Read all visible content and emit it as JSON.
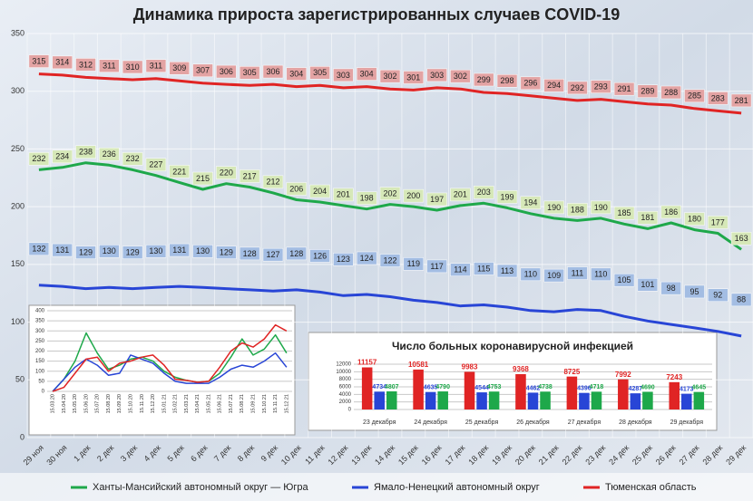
{
  "chart_data": [
    {
      "type": "line",
      "title": "Динамика прироста зарегистрированных случаев COVID-19",
      "categories": [
        "29 ноя",
        "30 ноя",
        "1 дек",
        "2 дек",
        "3 дек",
        "4 дек",
        "5 дек",
        "6 дек",
        "7 дек",
        "8 дек",
        "9 дек",
        "10 дек",
        "11 дек",
        "12 дек",
        "13 дек",
        "14 дек",
        "15 дек",
        "16 дек",
        "17 дек",
        "18 дек",
        "19 дек",
        "20 дек",
        "21 дек",
        "22 дек",
        "23 дек",
        "24 дек",
        "25 дек",
        "26 дек",
        "27 дек",
        "28 дек",
        "29 дек"
      ],
      "series": [
        {
          "name": "Ханты-Мансийский автономный округ — Югра",
          "color": "#1ea84a",
          "label_color": "#d6e8b8",
          "values": [
            232,
            234,
            238,
            236,
            232,
            227,
            221,
            215,
            220,
            217,
            212,
            206,
            204,
            201,
            198,
            202,
            200,
            197,
            201,
            203,
            199,
            194,
            190,
            188,
            190,
            185,
            181,
            186,
            180,
            177,
            163
          ]
        },
        {
          "name": "Ямало-Ненецкий автономный округ",
          "color": "#2845d6",
          "label_color": "#a3bde3",
          "values": [
            132,
            131,
            129,
            130,
            129,
            130,
            131,
            130,
            129,
            128,
            127,
            128,
            126,
            123,
            124,
            122,
            119,
            117,
            114,
            115,
            113,
            110,
            109,
            111,
            110,
            105,
            101,
            98,
            95,
            92,
            88
          ]
        },
        {
          "name": "Тюменская область",
          "color": "#e02424",
          "label_color": "#e3a3a3",
          "values": [
            315,
            314,
            312,
            311,
            310,
            311,
            309,
            307,
            306,
            305,
            306,
            304,
            305,
            303,
            304,
            302,
            301,
            303,
            302,
            299,
            298,
            296,
            294,
            292,
            293,
            291,
            289,
            288,
            285,
            283,
            281
          ]
        }
      ],
      "ylim": [
        0,
        350
      ],
      "yticks": [
        0,
        50,
        100,
        150,
        200,
        250,
        300,
        350
      ],
      "grid": true,
      "legend": "bottom"
    },
    {
      "type": "line",
      "categories": [
        "15.03.20",
        "15.04.20",
        "15.05.20",
        "15.06.20",
        "15.07.20",
        "15.08.20",
        "15.09.20",
        "15.10.20",
        "15.11.20",
        "15.12.20",
        "15.01.21",
        "15.02.21",
        "15.03.21",
        "15.04.21",
        "15.05.21",
        "15.06.21",
        "15.07.21",
        "15.08.21",
        "15.09.21",
        "15.10.21",
        "15.11.21",
        "15.12.21"
      ],
      "series": [
        {
          "color": "#1ea84a",
          "values": [
            0,
            60,
            150,
            290,
            190,
            110,
            130,
            160,
            170,
            150,
            100,
            70,
            55,
            45,
            50,
            90,
            170,
            260,
            180,
            210,
            280,
            190
          ]
        },
        {
          "color": "#2845d6",
          "values": [
            0,
            60,
            120,
            160,
            130,
            80,
            90,
            180,
            160,
            140,
            90,
            50,
            40,
            40,
            40,
            70,
            110,
            130,
            120,
            150,
            190,
            120
          ]
        },
        {
          "color": "#e02424",
          "values": [
            0,
            20,
            90,
            160,
            170,
            100,
            140,
            150,
            170,
            180,
            130,
            60,
            55,
            45,
            50,
            120,
            200,
            240,
            220,
            260,
            330,
            300
          ]
        }
      ],
      "ylim": [
        0,
        400
      ],
      "yticks": [
        0,
        50,
        100,
        150,
        200,
        250,
        300,
        350,
        400
      ],
      "grid": true
    },
    {
      "type": "bar",
      "title": "Число больных коронавирусной  инфекцией",
      "categories": [
        "23 декабря",
        "24 декабря",
        "25 декабря",
        "26 декабря",
        "27 декабря",
        "28 декабря",
        "29 декабря"
      ],
      "series": [
        {
          "color": "#e02424",
          "values": [
            11157,
            10581,
            9983,
            9368,
            8725,
            7992,
            7243
          ]
        },
        {
          "color": "#2845d6",
          "values": [
            4734,
            4635,
            4544,
            4462,
            4396,
            4287,
            4173
          ]
        },
        {
          "color": "#1ea84a",
          "values": [
            4807,
            4790,
            4753,
            4738,
            4718,
            4690,
            4645
          ]
        }
      ],
      "ylim": [
        0,
        12000
      ],
      "yticks": [
        0,
        2000,
        4000,
        6000,
        8000,
        10000,
        12000
      ],
      "grid": true
    }
  ]
}
